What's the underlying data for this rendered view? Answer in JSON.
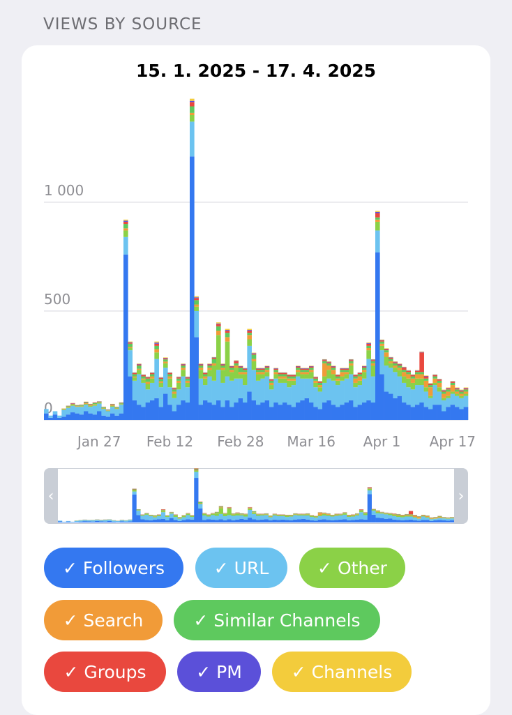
{
  "section_title": "VIEWS BY SOURCE",
  "date_range": "15. 1. 2025 - 17. 4. 2025",
  "chips": [
    {
      "label": "✓ Followers",
      "color": "#3478f0"
    },
    {
      "label": "✓ URL",
      "color": "#6cc3f0"
    },
    {
      "label": "✓ Other",
      "color": "#8bd147"
    },
    {
      "label": "✓ Search",
      "color": "#f19b38"
    },
    {
      "label": "✓ Similar Channels",
      "color": "#5ec95e"
    },
    {
      "label": "✓ Groups",
      "color": "#e9483e"
    },
    {
      "label": "✓ PM",
      "color": "#5b50d9"
    },
    {
      "label": "✓ Channels",
      "color": "#f3cc3c"
    }
  ],
  "navigator": {
    "left_icon": "chevron-left-icon",
    "right_icon": "chevron-right-icon"
  },
  "chart_data": {
    "type": "bar",
    "stacked": true,
    "date_range": "15. 1. 2025 - 17. 4. 2025",
    "ylim": [
      0,
      1400
    ],
    "y_ticks": [
      {
        "value": 0,
        "label": "0"
      },
      {
        "value": 500,
        "label": "500"
      },
      {
        "value": 1000,
        "label": "1 000"
      }
    ],
    "x_tick_labels": [
      "Jan 27",
      "Feb 12",
      "Feb 28",
      "Mar 16",
      "Apr 1",
      "Apr 17"
    ],
    "x_tick_days": [
      12,
      28,
      44,
      60,
      76,
      92
    ],
    "grid": true,
    "series_colors": [
      "#3478f0",
      "#6cc3f0",
      "#8bd147",
      "#f19b38",
      "#5ec95e",
      "#e9483e",
      "#5b50d9",
      "#f3cc3c"
    ],
    "series": [
      {
        "name": "Followers",
        "values": [
          30,
          10,
          25,
          10,
          15,
          25,
          35,
          30,
          25,
          40,
          30,
          25,
          40,
          20,
          15,
          30,
          20,
          30,
          760,
          200,
          90,
          70,
          60,
          80,
          90,
          100,
          60,
          120,
          70,
          40,
          70,
          90,
          80,
          1210,
          380,
          70,
          90,
          80,
          70,
          90,
          60,
          90,
          60,
          80,
          100,
          80,
          130,
          90,
          70,
          80,
          90,
          60,
          80,
          70,
          80,
          70,
          60,
          80,
          90,
          100,
          80,
          60,
          50,
          80,
          90,
          70,
          60,
          70,
          80,
          90,
          60,
          70,
          80,
          90,
          80,
          770,
          210,
          130,
          120,
          100,
          110,
          80,
          70,
          60,
          70,
          80,
          60,
          50,
          70,
          70,
          40,
          60,
          70,
          60,
          50,
          60
        ]
      },
      {
        "name": "URL",
        "values": [
          20,
          10,
          15,
          10,
          30,
          30,
          30,
          30,
          35,
          30,
          30,
          40,
          35,
          30,
          25,
          30,
          30,
          40,
          80,
          120,
          90,
          140,
          110,
          60,
          80,
          180,
          90,
          120,
          80,
          60,
          70,
          110,
          70,
          160,
          120,
          120,
          70,
          120,
          110,
          140,
          110,
          110,
          120,
          110,
          90,
          80,
          210,
          140,
          110,
          110,
          110,
          80,
          110,
          100,
          90,
          80,
          100,
          120,
          100,
          90,
          110,
          90,
          80,
          90,
          100,
          110,
          100,
          110,
          110,
          120,
          90,
          90,
          110,
          190,
          120,
          100,
          110,
          120,
          120,
          120,
          90,
          90,
          80,
          80,
          90,
          80,
          70,
          50,
          90,
          60,
          50,
          40,
          50,
          50,
          50,
          50
        ]
      },
      {
        "name": "Other",
        "values": [
          0,
          0,
          0,
          0,
          2,
          3,
          4,
          2,
          3,
          4,
          4,
          5,
          3,
          3,
          2,
          4,
          3,
          3,
          30,
          10,
          15,
          20,
          15,
          25,
          20,
          30,
          20,
          20,
          40,
          20,
          30,
          30,
          20,
          30,
          20,
          40,
          30,
          30,
          70,
          160,
          60,
          160,
          40,
          50,
          20,
          50,
          30,
          40,
          30,
          20,
          20,
          20,
          20,
          20,
          20,
          30,
          20,
          20,
          20,
          20,
          30,
          20,
          20,
          30,
          40,
          30,
          20,
          20,
          20,
          40,
          20,
          20,
          30,
          40,
          50,
          40,
          20,
          40,
          20,
          20,
          30,
          30,
          40,
          30,
          30,
          30,
          20,
          10,
          10,
          20,
          10,
          10,
          10,
          10,
          10,
          10
        ]
      },
      {
        "name": "Search",
        "values": [
          0,
          0,
          0,
          0,
          2,
          2,
          3,
          2,
          2,
          3,
          3,
          3,
          2,
          2,
          2,
          3,
          2,
          2,
          10,
          5,
          5,
          5,
          5,
          10,
          10,
          15,
          8,
          8,
          10,
          10,
          10,
          10,
          10,
          10,
          10,
          10,
          10,
          10,
          10,
          20,
          10,
          20,
          10,
          10,
          10,
          10,
          20,
          10,
          10,
          10,
          10,
          10,
          10,
          10,
          10,
          10,
          10,
          10,
          10,
          10,
          10,
          10,
          10,
          60,
          20,
          20,
          10,
          20,
          10,
          10,
          20,
          20,
          10,
          10,
          10,
          10,
          10,
          20,
          10,
          10,
          10,
          20,
          20,
          20,
          20,
          20,
          30,
          40,
          20,
          20,
          20,
          20,
          30,
          10,
          10,
          10
        ]
      },
      {
        "name": "Similar Channels",
        "values": [
          0,
          0,
          0,
          0,
          2,
          3,
          2,
          2,
          3,
          3,
          3,
          4,
          3,
          3,
          2,
          3,
          3,
          3,
          20,
          15,
          10,
          15,
          10,
          15,
          10,
          15,
          10,
          10,
          10,
          10,
          10,
          10,
          10,
          30,
          20,
          10,
          10,
          10,
          20,
          20,
          10,
          20,
          10,
          10,
          20,
          10,
          10,
          20,
          10,
          10,
          10,
          10,
          10,
          10,
          10,
          10,
          10,
          10,
          10,
          10,
          10,
          10,
          10,
          10,
          10,
          10,
          10,
          10,
          10,
          10,
          10,
          10,
          10,
          10,
          10,
          10,
          10,
          10,
          10,
          10,
          10,
          10,
          10,
          10,
          10,
          10,
          10,
          10,
          10,
          10,
          10,
          10,
          10,
          10,
          10,
          10
        ]
      },
      {
        "name": "Groups",
        "values": [
          0,
          0,
          0,
          0,
          1,
          1,
          2,
          1,
          1,
          2,
          2,
          2,
          1,
          1,
          1,
          2,
          1,
          1,
          10,
          5,
          5,
          5,
          5,
          5,
          5,
          10,
          5,
          5,
          5,
          5,
          5,
          5,
          5,
          20,
          10,
          5,
          5,
          5,
          5,
          10,
          5,
          10,
          5,
          10,
          5,
          5,
          10,
          5,
          5,
          5,
          5,
          5,
          5,
          5,
          5,
          5,
          5,
          5,
          5,
          5,
          5,
          5,
          5,
          5,
          5,
          5,
          5,
          5,
          5,
          5,
          5,
          5,
          5,
          10,
          5,
          20,
          5,
          5,
          5,
          5,
          5,
          10,
          5,
          5,
          5,
          90,
          10,
          5,
          5,
          5,
          5,
          5,
          5,
          5,
          5,
          5
        ]
      },
      {
        "name": "PM",
        "values": [
          0,
          0,
          0,
          0,
          0,
          1,
          1,
          1,
          1,
          1,
          1,
          1,
          1,
          1,
          1,
          1,
          1,
          1,
          5,
          2,
          2,
          2,
          2,
          2,
          2,
          5,
          2,
          2,
          2,
          2,
          2,
          2,
          2,
          5,
          3,
          2,
          2,
          2,
          2,
          3,
          2,
          3,
          2,
          2,
          2,
          2,
          3,
          2,
          2,
          2,
          2,
          2,
          2,
          2,
          2,
          2,
          2,
          2,
          2,
          2,
          2,
          2,
          2,
          2,
          2,
          2,
          2,
          2,
          2,
          2,
          2,
          2,
          2,
          3,
          2,
          5,
          2,
          2,
          2,
          2,
          2,
          2,
          2,
          2,
          2,
          2,
          2,
          2,
          2,
          2,
          2,
          2,
          2,
          2,
          2,
          2
        ]
      },
      {
        "name": "Channels",
        "values": [
          0,
          0,
          0,
          0,
          1,
          1,
          1,
          1,
          1,
          1,
          1,
          1,
          1,
          1,
          1,
          1,
          1,
          1,
          5,
          3,
          2,
          2,
          2,
          2,
          2,
          5,
          2,
          2,
          2,
          2,
          2,
          2,
          2,
          10,
          5,
          2,
          2,
          2,
          2,
          5,
          2,
          5,
          2,
          2,
          2,
          2,
          5,
          2,
          2,
          2,
          2,
          2,
          2,
          2,
          2,
          2,
          2,
          2,
          2,
          2,
          2,
          2,
          2,
          2,
          2,
          2,
          2,
          2,
          2,
          2,
          2,
          2,
          2,
          3,
          2,
          5,
          2,
          2,
          2,
          2,
          2,
          2,
          2,
          2,
          2,
          2,
          2,
          2,
          2,
          2,
          2,
          2,
          2,
          2,
          2,
          2
        ]
      }
    ]
  }
}
